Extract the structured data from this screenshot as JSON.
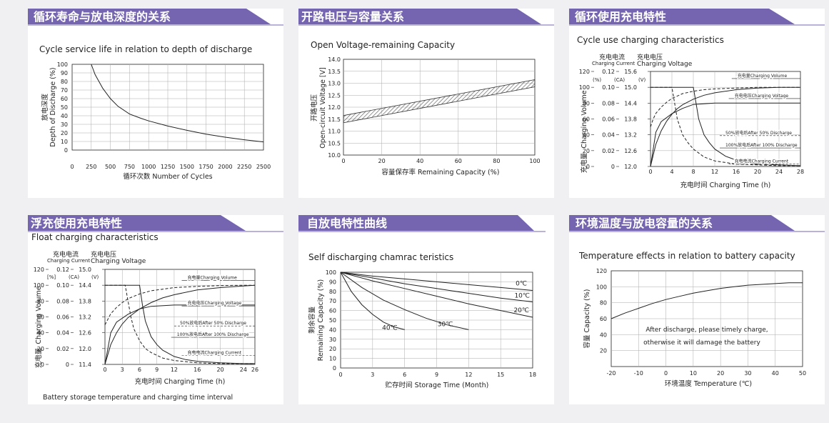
{
  "panels": {
    "p1": {
      "title": "循环寿命与放电深度的关系",
      "subtitle": "Cycle service life in relation to depth of discharge",
      "ylabel_cn": "放电深度",
      "ylabel_en": "Depth of Discharge (%)",
      "xlabel": "循环次数 Number of Cycles"
    },
    "p2": {
      "title": "开路电压与容量关系",
      "subtitle": "Open Voltage-remaining Capacity",
      "ylabel_cn": "开路电压",
      "ylabel_en": "Open-circuit Voltage [V]",
      "xlabel": "容量保存率 Remaining Capacity (%)"
    },
    "p3": {
      "title": "循环使用充电特性",
      "subtitle": "Cycle use charging characteristics",
      "head_current_cn": "充电电流",
      "head_current_en": "Charging Current",
      "head_voltage_cn": "充电电压",
      "head_voltage_en": "Charging Voltage",
      "unit_pct": "(%)",
      "unit_ca": "(CA)",
      "unit_v": "(V)",
      "ylabel_cn": "充电量",
      "ylabel_en": "Charging Volume",
      "xlabel": "充电时间 Charging Time (h)"
    },
    "p4": {
      "title": "浮充使用充电特性",
      "subtitle": "Float charging characteristics",
      "head_current_cn": "充电电流",
      "head_current_en": "Charging Current",
      "head_voltage_cn": "充电电压",
      "head_voltage_en": "Charging Voltage",
      "unit_pct": "[%]",
      "unit_ca": "(CA)",
      "unit_v": "(V)",
      "ylabel_cn": "充电量",
      "ylabel_en": "Charging Volume",
      "xlabel": "充电时间 Charging Time (h)",
      "caption": "Battery storage temperature and charging time interval"
    },
    "p5": {
      "title": "自放电特性曲线",
      "subtitle": "Self discharging chamrac teristics",
      "ylabel_cn": "剩余容量",
      "ylabel_en": "Remaining Capacity (%)",
      "xlabel": "贮存时间 Storage Time (Month)"
    },
    "p6": {
      "title": "环境温度与放电容量的关系",
      "subtitle": "Temperature effects in relation to battery capacity",
      "ylabel": "容量 Capacity (%)",
      "xlabel": "环境温度 Temperature (℃)",
      "note_line1": "After discharge, please timely charge,",
      "note_line2": "otherwise it will damage the battery"
    }
  },
  "chart_data": [
    {
      "id": "p1",
      "type": "line",
      "xlim": [
        0,
        2500
      ],
      "ylim": [
        0,
        100
      ],
      "xticks": [
        "0",
        "250",
        "500",
        "750",
        "1000",
        "1250",
        "1500",
        "1750",
        "2000",
        "2250",
        "2500"
      ],
      "yticks": [
        "0",
        "10",
        "20",
        "30",
        "40",
        "50",
        "60",
        "70",
        "80",
        "90",
        "100"
      ],
      "series": [
        {
          "x": [
            250,
            300,
            400,
            500,
            600,
            750,
            900,
            1000,
            1250,
            1500,
            1750,
            2000,
            2250,
            2500
          ],
          "y": [
            100,
            88,
            72,
            60,
            51,
            42,
            37,
            34,
            28,
            23,
            18.5,
            15,
            12,
            9.5
          ]
        }
      ]
    },
    {
      "id": "p2",
      "type": "area",
      "xlim": [
        0,
        100
      ],
      "ylim": [
        10.0,
        14.0
      ],
      "xticks": [
        "0",
        "20",
        "40",
        "60",
        "80",
        "100"
      ],
      "yticks": [
        "10.0",
        "10.5",
        "11.0",
        "11.5",
        "12.0",
        "12.5",
        "13.0",
        "13.5",
        "14.0"
      ],
      "band": {
        "x": [
          0,
          100
        ],
        "upper": [
          11.65,
          13.15
        ],
        "lower": [
          11.35,
          12.85
        ]
      }
    },
    {
      "id": "p3",
      "type": "line",
      "xlim": [
        0,
        28
      ],
      "xticks": [
        "0",
        "4",
        "8",
        "12",
        "16",
        "20",
        "24",
        "28"
      ],
      "yticks_pct": [
        "0",
        "20",
        "40",
        "60",
        "80",
        "100",
        "120"
      ],
      "yticks_ca": [
        "0",
        "0.02",
        "0.04",
        "0.06",
        "0.08",
        "0.10",
        "0.12"
      ],
      "yticks_v": [
        "12.0",
        "12.6",
        "13.2",
        "13.8",
        "14.4",
        "15.0",
        "15.6"
      ],
      "series": [
        {
          "name": "充电量Charging Volume",
          "x": [
            0,
            1,
            2,
            3,
            4,
            5,
            6,
            8,
            10,
            12,
            16,
            20,
            24,
            28
          ],
          "y": [
            0,
            28,
            45,
            57,
            66,
            73,
            78,
            85,
            90,
            93,
            97,
            99,
            100,
            100
          ]
        },
        {
          "name": "50%放电后After 50% Discharge",
          "style": "dashed",
          "x": [
            0,
            0.5,
            1,
            2,
            3,
            4,
            5,
            6,
            8,
            10,
            12,
            16,
            20,
            24,
            28
          ],
          "y": [
            50,
            60,
            67,
            75,
            81,
            86,
            89,
            92,
            95,
            97,
            98,
            99,
            100,
            100,
            100
          ]
        },
        {
          "name": "充电电压Charging Voltage",
          "x": [
            0,
            1,
            2,
            4,
            6,
            8,
            12,
            16,
            20,
            24,
            28
          ],
          "y": [
            12.0,
            13.3,
            13.7,
            14.0,
            14.2,
            14.35,
            14.4,
            14.4,
            14.4,
            14.4,
            14.4
          ]
        },
        {
          "name": "100%放电后After 100% Discharge",
          "x": [
            0,
            8,
            8.5,
            9,
            10,
            11,
            12,
            14,
            16,
            18,
            20,
            24,
            28
          ],
          "y": [
            0.1,
            0.1,
            0.08,
            0.06,
            0.04,
            0.03,
            0.022,
            0.013,
            0.008,
            0.005,
            0.003,
            0.002,
            0.001
          ]
        },
        {
          "name": "充电电流Charging Current",
          "style": "dashed",
          "x": [
            0,
            4,
            4.5,
            5,
            6,
            7,
            8,
            10,
            12,
            16,
            20,
            24,
            28
          ],
          "y": [
            0.1,
            0.1,
            0.08,
            0.06,
            0.04,
            0.03,
            0.022,
            0.012,
            0.007,
            0.003,
            0.002,
            0.001,
            0.001
          ]
        }
      ]
    },
    {
      "id": "p4",
      "type": "line",
      "xlim": [
        0,
        26
      ],
      "xticks": [
        "0",
        "3",
        "6",
        "9",
        "12",
        "16",
        "20",
        "24",
        "26"
      ],
      "yticks_pct": [
        "0",
        "20",
        "40",
        "60",
        "80",
        "100",
        "120"
      ],
      "yticks_ca": [
        "0",
        "0.02",
        "0.04",
        "0.06",
        "0.08",
        "0.10",
        "0.12"
      ],
      "yticks_v": [
        "11.4",
        "12.0",
        "12.6",
        "13.2",
        "13.8",
        "14.4",
        "15.0"
      ],
      "series": [
        {
          "name": "充电量Charging Volume",
          "x": [
            0,
            1,
            2,
            3,
            4,
            6,
            8,
            10,
            12,
            16,
            20,
            24,
            26
          ],
          "y": [
            0,
            25,
            40,
            51,
            59,
            70,
            78,
            84,
            88,
            94,
            97,
            99,
            100
          ]
        },
        {
          "name": "50%放电后After 50% Discharge",
          "style": "dashed",
          "x": [
            0,
            1,
            2,
            3,
            4,
            6,
            8,
            10,
            12,
            16,
            20,
            24,
            26
          ],
          "y": [
            50,
            64,
            72,
            78,
            83,
            89,
            93,
            95,
            97,
            98.5,
            99.5,
            100,
            100
          ]
        },
        {
          "name": "充电电压Charging Voltage",
          "x": [
            0,
            1,
            2,
            4,
            6,
            8,
            12,
            16,
            20,
            24,
            26
          ],
          "y": [
            11.4,
            12.6,
            13.0,
            13.3,
            13.5,
            13.6,
            13.65,
            13.65,
            13.65,
            13.65,
            13.65
          ]
        },
        {
          "name": "100%放电后After 100% Discharge",
          "x": [
            0,
            6,
            6.5,
            7,
            8,
            9,
            10,
            12,
            14,
            16,
            20,
            24,
            26
          ],
          "y": [
            0.1,
            0.1,
            0.075,
            0.055,
            0.035,
            0.025,
            0.018,
            0.01,
            0.006,
            0.004,
            0.002,
            0.001,
            0.001
          ]
        },
        {
          "name": "充电电流Charging Current",
          "style": "dashed",
          "x": [
            0,
            3.5,
            4,
            4.5,
            5,
            6,
            7,
            8,
            10,
            12,
            16,
            20,
            24,
            26
          ],
          "y": [
            0.1,
            0.1,
            0.08,
            0.06,
            0.045,
            0.03,
            0.02,
            0.015,
            0.008,
            0.005,
            0.002,
            0.001,
            0.001,
            0.001
          ]
        }
      ]
    },
    {
      "id": "p5",
      "type": "line",
      "xlim": [
        0,
        18
      ],
      "ylim": [
        0,
        100
      ],
      "xticks": [
        "0",
        "3",
        "6",
        "9",
        "12",
        "15",
        "18"
      ],
      "yticks": [
        "0",
        "10",
        "20",
        "30",
        "40",
        "50",
        "60",
        "70",
        "80",
        "90",
        "100"
      ],
      "series": [
        {
          "name": "0℃",
          "x": [
            0,
            3,
            6,
            9,
            12,
            15,
            18
          ],
          "y": [
            100,
            96,
            93,
            90,
            87,
            84,
            81
          ]
        },
        {
          "name": "10℃",
          "x": [
            0,
            3,
            6,
            9,
            12,
            15,
            18
          ],
          "y": [
            100,
            94,
            88,
            83,
            78,
            73,
            69
          ]
        },
        {
          "name": "20℃",
          "x": [
            0,
            3,
            6,
            9,
            12,
            15,
            18
          ],
          "y": [
            100,
            91,
            83,
            75,
            67,
            60,
            53
          ]
        },
        {
          "name": "30℃",
          "x": [
            0,
            2,
            4,
            6,
            8,
            10,
            12
          ],
          "y": [
            100,
            84,
            71,
            61,
            52,
            45,
            40
          ]
        },
        {
          "name": "40℃",
          "x": [
            0,
            1,
            2,
            3,
            4,
            5,
            6
          ],
          "y": [
            100,
            80,
            66,
            56,
            48,
            43,
            40
          ]
        }
      ]
    },
    {
      "id": "p6",
      "type": "line",
      "xlim": [
        -20,
        50
      ],
      "ylim": [
        0,
        120
      ],
      "xticks": [
        "-20",
        "-10",
        "0",
        "10",
        "20",
        "30",
        "40",
        "50"
      ],
      "yticks": [
        "20",
        "40",
        "60",
        "80",
        "100",
        "120"
      ],
      "series": [
        {
          "x": [
            -20,
            -15,
            -10,
            -5,
            0,
            5,
            10,
            15,
            20,
            25,
            30,
            35,
            40,
            45,
            50
          ],
          "y": [
            60,
            67,
            73,
            79,
            84,
            88,
            92,
            95,
            98,
            100,
            102,
            103,
            104,
            105,
            105
          ]
        }
      ]
    }
  ]
}
